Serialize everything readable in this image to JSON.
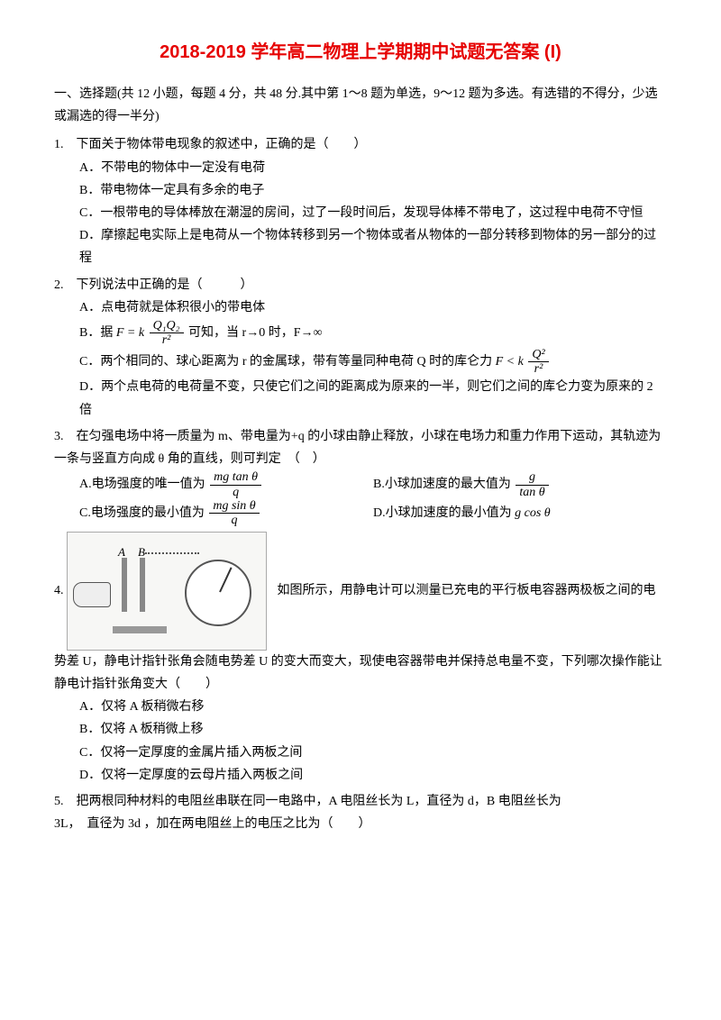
{
  "title": "2018-2019 学年高二物理上学期期中试题无答案 (I)",
  "section1": "一、选择题(共 12 小题，每题 4 分，共 48 分.其中第 1～8 题为单选，9～12 题为多选。有选错的不得分，少选或漏选的得一半分)",
  "q1": {
    "stem": "1.　下面关于物体带电现象的叙述中，正确的是（　　）",
    "A": "A．不带电的物体中一定没有电荷",
    "B": "B．带电物体一定具有多余的电子",
    "C": "C．一根带电的导体棒放在潮湿的房间，过了一段时间后，发现导体棒不带电了，这过程中电荷不守恒",
    "D": "D．摩擦起电实际上是电荷从一个物体转移到另一个物体或者从物体的一部分转移到物体的另一部分的过程"
  },
  "q2": {
    "stem": "2.　下列说法中正确的是（　　　）",
    "A": "A．点电荷就是体积很小的带电体",
    "B_pre": "B．据",
    "B_post": "可知，当 r→0 时，F→∞",
    "C_pre": "C．两个相同的、球心距离为 r 的金属球，带有等量同种电荷 Q 时的库仑力",
    "D": "D．两个点电荷的电荷量不变，只使它们之间的距离成为原来的一半，则它们之间的库仑力变为原来的 2 倍"
  },
  "q3": {
    "stem": "3.　在匀强电场中将一质量为 m、带电量为+q 的小球由静止释放，小球在电场力和重力作用下运动，其轨迹为一条与竖直方向成 θ 角的直线，则可判定　（　）",
    "A_pre": "A.电场强度的唯一值为",
    "B_pre": "B.小球加速度的最大值为",
    "C_pre": "C.电场强度的最小值为",
    "D_pre": "D.小球加速度的最小值为"
  },
  "q4": {
    "stem_post": "如图所示，用静电计可以测量已充电的平行板电容器两极板之间的电势差 U，静电计指针张角会随电势差 U 的变大而变大，现使电容器带电并保持总电量不变，下列哪次操作能让静电计指针张角变大（　　）",
    "num": "4.",
    "A": "A．仅将 A 板稍微右移",
    "B": "B．仅将 A 板稍微上移",
    "C": "C．仅将一定厚度的金属片插入两板之间",
    "D": "D．仅将一定厚度的云母片插入两板之间"
  },
  "q5": {
    "stem": "5.　把两根同种材料的电阻丝串联在同一电路中，A 电阻丝长为 L，直径为 d，B 电阻丝长为",
    "stem2": "3L，　直径为 3d ，加在两电阻丝上的电压之比为（　　）"
  },
  "formulas": {
    "coulomb_num": "Q₁Q₂",
    "coulomb_den": "r²",
    "F_eq": "F = k",
    "F_lt": "F < k",
    "q2c_num": "Q²",
    "q2c_den": "r²",
    "q3a_num": "mg tan θ",
    "q3a_den": "q",
    "q3b_num": "g",
    "q3b_den": "tan θ",
    "q3c_num": "mg sin θ",
    "q3c_den": "q",
    "q3d": "g cos θ",
    "figA": "A",
    "figB": "B"
  }
}
